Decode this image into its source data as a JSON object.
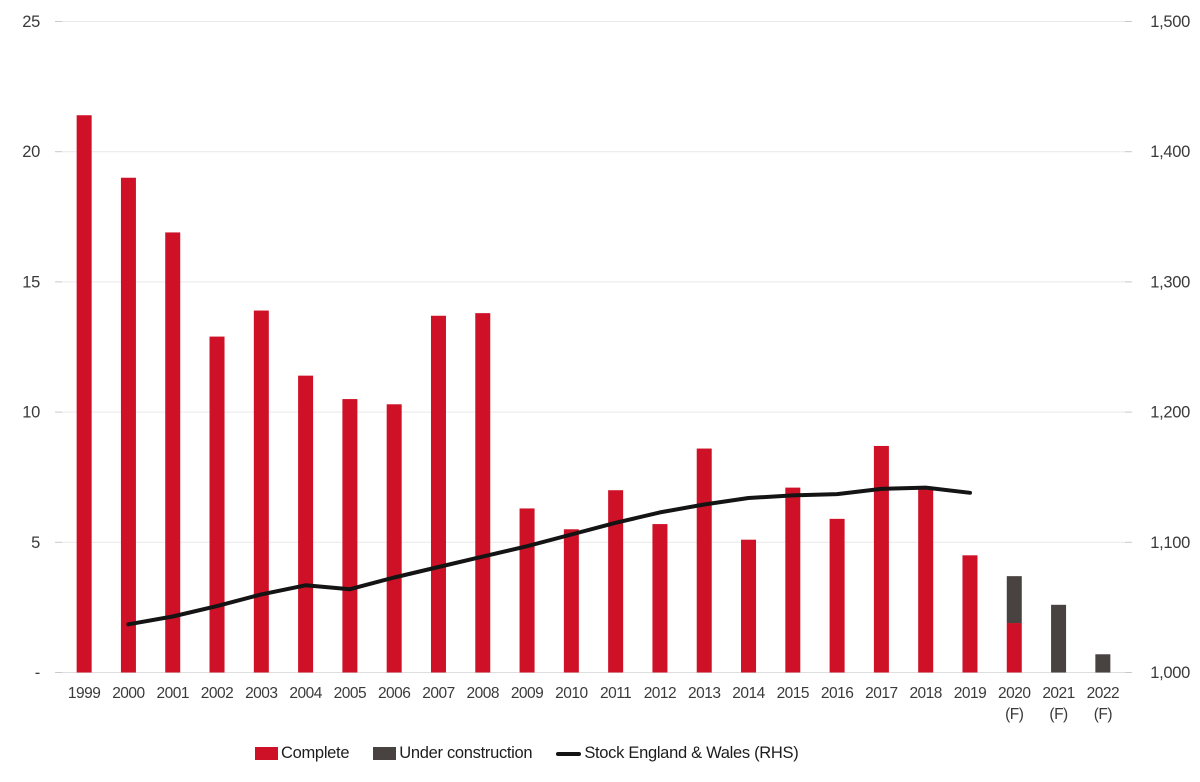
{
  "chart_data": {
    "type": "bar",
    "subtype": "stacked-bars-with-line-dual-axis",
    "title": "",
    "xlabel": "",
    "ylabel_left": "",
    "ylabel_right": "",
    "categories": [
      "1999",
      "2000",
      "2001",
      "2002",
      "2003",
      "2004",
      "2005",
      "2006",
      "2007",
      "2008",
      "2009",
      "2010",
      "2011",
      "2012",
      "2013",
      "2014",
      "2015",
      "2016",
      "2017",
      "2018",
      "2019",
      "2020",
      "2021",
      "2022"
    ],
    "forecast_years": [
      "2020",
      "2021",
      "2022"
    ],
    "forecast_suffix": "(F)",
    "series": [
      {
        "name": "Complete",
        "type": "bar",
        "axis": "left",
        "color": "#ce1126",
        "values": [
          21.4,
          19.0,
          16.9,
          12.9,
          13.9,
          11.4,
          10.5,
          10.3,
          13.7,
          13.8,
          6.3,
          5.5,
          7.0,
          5.7,
          8.6,
          5.1,
          7.1,
          5.9,
          8.7,
          7.1,
          4.5,
          1.9,
          0,
          0
        ]
      },
      {
        "name": "Under construction",
        "type": "bar",
        "axis": "left",
        "color": "#484240",
        "values": [
          0,
          0,
          0,
          0,
          0,
          0,
          0,
          0,
          0,
          0,
          0,
          0,
          0,
          0,
          0,
          0,
          0,
          0,
          0,
          0,
          0,
          1.8,
          2.6,
          0.7
        ]
      },
      {
        "name": "Stock England & Wales (RHS)",
        "type": "line",
        "axis": "right",
        "color": "#141414",
        "values": [
          null,
          1037,
          1043,
          1051,
          1060,
          1067,
          1064,
          1073,
          1081,
          1089,
          1097,
          1106,
          1115,
          1123,
          1129,
          1134,
          1136,
          1137,
          1141,
          1142,
          1138,
          null,
          null,
          null
        ]
      }
    ],
    "left_axis": {
      "tick_labels": [
        "25",
        "20",
        "15",
        "10",
        "5",
        "-"
      ],
      "tick_values": [
        25,
        20,
        15,
        10,
        5,
        0
      ],
      "min": 0,
      "max": 25
    },
    "right_axis": {
      "tick_labels": [
        "1,500",
        "1,400",
        "1,300",
        "1,200",
        "1,100",
        "1,000"
      ],
      "tick_values": [
        1500,
        1400,
        1300,
        1200,
        1100,
        1000
      ],
      "min": 1000,
      "max": 1500
    },
    "grid": true,
    "legend_position": "bottom",
    "colors": {
      "gridline": "#e9e9e9",
      "baseline": "#dedede",
      "tick": "#c9c9c9",
      "axis_text": "#3a3a3a",
      "legend_text": "#1d1d1d"
    }
  }
}
